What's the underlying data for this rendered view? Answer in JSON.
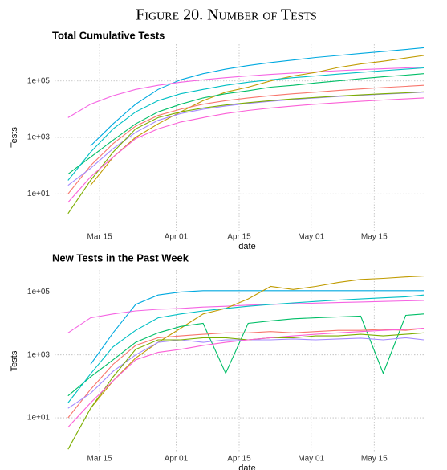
{
  "figure_title": "Figure 20. Number of Tests",
  "chart_data": [
    {
      "type": "line",
      "title": "Total Cumulative Tests",
      "x_label": "date",
      "y_label": "Tests",
      "log_y": true,
      "grid": true,
      "x": [
        "Mar 08",
        "Mar 13",
        "Mar 18",
        "Mar 23",
        "Mar 28",
        "Apr 02",
        "Apr 07",
        "Apr 12",
        "Apr 17",
        "Apr 22",
        "Apr 27",
        "May 02",
        "May 07",
        "May 12",
        "May 17",
        "May 22",
        "May 26"
      ],
      "xlim": [
        "Mar 05",
        "May 26"
      ],
      "xticks": [
        "Mar 15",
        "Apr 01",
        "Apr 15",
        "May 01",
        "May 15"
      ],
      "ylim": [
        0.5,
        2000000
      ],
      "yticks": [
        {
          "value": 10,
          "label": "1e+01"
        },
        {
          "value": 1000,
          "label": "1e+03"
        },
        {
          "value": 100000,
          "label": "1e+05"
        }
      ],
      "series": [
        {
          "color": "#00a9e0",
          "values": [
            null,
            500,
            3000,
            15000,
            50000,
            110000,
            180000,
            260000,
            350000,
            450000,
            550000,
            680000,
            800000,
            950000,
            1100000,
            1300000,
            1500000
          ]
        },
        {
          "color": "#f564e3",
          "values": [
            5000,
            15000,
            30000,
            50000,
            70000,
            90000,
            110000,
            130000,
            150000,
            170000,
            190000,
            210000,
            230000,
            250000,
            270000,
            290000,
            310000
          ]
        },
        {
          "color": "#c09b00",
          "values": [
            null,
            20,
            200,
            1000,
            3000,
            8000,
            20000,
            40000,
            60000,
            100000,
            150000,
            200000,
            300000,
            400000,
            500000,
            650000,
            800000
          ]
        },
        {
          "color": "#00be67",
          "values": [
            50,
            200,
            800,
            3000,
            8000,
            15000,
            25000,
            35000,
            45000,
            60000,
            70000,
            85000,
            100000,
            120000,
            140000,
            160000,
            180000
          ]
        },
        {
          "color": "#f8766d",
          "values": [
            10,
            100,
            600,
            2500,
            6000,
            10000,
            15000,
            20000,
            25000,
            30000,
            35000,
            40000,
            46000,
            52000,
            58000,
            64000,
            70000
          ]
        },
        {
          "color": "#a58aff",
          "values": [
            20,
            80,
            400,
            1500,
            4000,
            7000,
            10000,
            13000,
            16000,
            19000,
            22000,
            25000,
            28000,
            31000,
            34000,
            37000,
            40000
          ]
        },
        {
          "color": "#7cae00",
          "values": [
            2,
            30,
            300,
            2000,
            5000,
            8000,
            11000,
            14000,
            17000,
            20000,
            23000,
            26000,
            29000,
            32000,
            35000,
            38000,
            41000
          ]
        },
        {
          "color": "#00bfc4",
          "values": [
            30,
            300,
            2000,
            8000,
            20000,
            35000,
            50000,
            70000,
            90000,
            110000,
            130000,
            150000,
            175000,
            200000,
            230000,
            260000,
            290000
          ]
        },
        {
          "color": "#fb61d7",
          "values": [
            5,
            40,
            200,
            900,
            2000,
            3500,
            5000,
            7000,
            9000,
            11000,
            13000,
            15000,
            17000,
            19000,
            21000,
            23000,
            25000
          ]
        }
      ]
    },
    {
      "type": "line",
      "title": "New Tests in the Past Week",
      "x_label": "date",
      "y_label": "Tests",
      "log_y": true,
      "grid": true,
      "x": [
        "Mar 08",
        "Mar 13",
        "Mar 18",
        "Mar 23",
        "Mar 28",
        "Apr 02",
        "Apr 07",
        "Apr 12",
        "Apr 17",
        "Apr 22",
        "Apr 27",
        "May 02",
        "May 07",
        "May 12",
        "May 17",
        "May 22",
        "May 26"
      ],
      "xlim": [
        "Mar 05",
        "May 26"
      ],
      "xticks": [
        "Mar 15",
        "Apr 01",
        "Apr 15",
        "May 01",
        "May 15"
      ],
      "ylim": [
        0.8,
        500000
      ],
      "yticks": [
        {
          "value": 10,
          "label": "1e+01"
        },
        {
          "value": 1000,
          "label": "1e+03"
        },
        {
          "value": 100000,
          "label": "1e+05"
        }
      ],
      "series": [
        {
          "color": "#00a9e0",
          "values": [
            null,
            500,
            5000,
            40000,
            80000,
            100000,
            110000,
            110000,
            110000,
            110000,
            110000,
            110000,
            110000,
            110000,
            110000,
            110000,
            110000
          ]
        },
        {
          "color": "#f564e3",
          "values": [
            5000,
            15000,
            20000,
            25000,
            28000,
            30000,
            33000,
            35000,
            38000,
            40000,
            42000,
            44000,
            46000,
            48000,
            50000,
            52000,
            54000
          ]
        },
        {
          "color": "#c09b00",
          "values": [
            null,
            20,
            150,
            800,
            2500,
            7000,
            20000,
            30000,
            60000,
            150000,
            120000,
            150000,
            200000,
            250000,
            270000,
            300000,
            320000
          ]
        },
        {
          "color": "#00be67",
          "values": [
            50,
            200,
            700,
            2500,
            5000,
            8000,
            10000,
            260,
            10000,
            12000,
            14000,
            15000,
            16000,
            17000,
            260,
            18000,
            20000
          ]
        },
        {
          "color": "#f8766d",
          "values": [
            10,
            80,
            500,
            2000,
            3500,
            4000,
            4500,
            5000,
            5000,
            5500,
            5000,
            5500,
            6000,
            6000,
            6500,
            6000,
            7000
          ]
        },
        {
          "color": "#a58aff",
          "values": [
            20,
            60,
            300,
            1000,
            2500,
            3000,
            2500,
            3000,
            3000,
            3000,
            3200,
            3000,
            3200,
            3400,
            3000,
            3500,
            3000
          ]
        },
        {
          "color": "#7cae00",
          "values": [
            1,
            20,
            200,
            1500,
            3000,
            3000,
            3500,
            3500,
            3000,
            3500,
            3500,
            4000,
            4000,
            4500,
            4000,
            4500,
            5000
          ]
        },
        {
          "color": "#00bfc4",
          "values": [
            30,
            250,
            1800,
            6000,
            15000,
            20000,
            25000,
            30000,
            35000,
            40000,
            45000,
            50000,
            55000,
            60000,
            65000,
            70000,
            80000
          ]
        },
        {
          "color": "#fb61d7",
          "values": [
            5,
            30,
            150,
            700,
            1200,
            1500,
            2000,
            2500,
            3000,
            3500,
            4000,
            4500,
            5000,
            5500,
            6000,
            6500,
            7000
          ]
        }
      ]
    }
  ]
}
